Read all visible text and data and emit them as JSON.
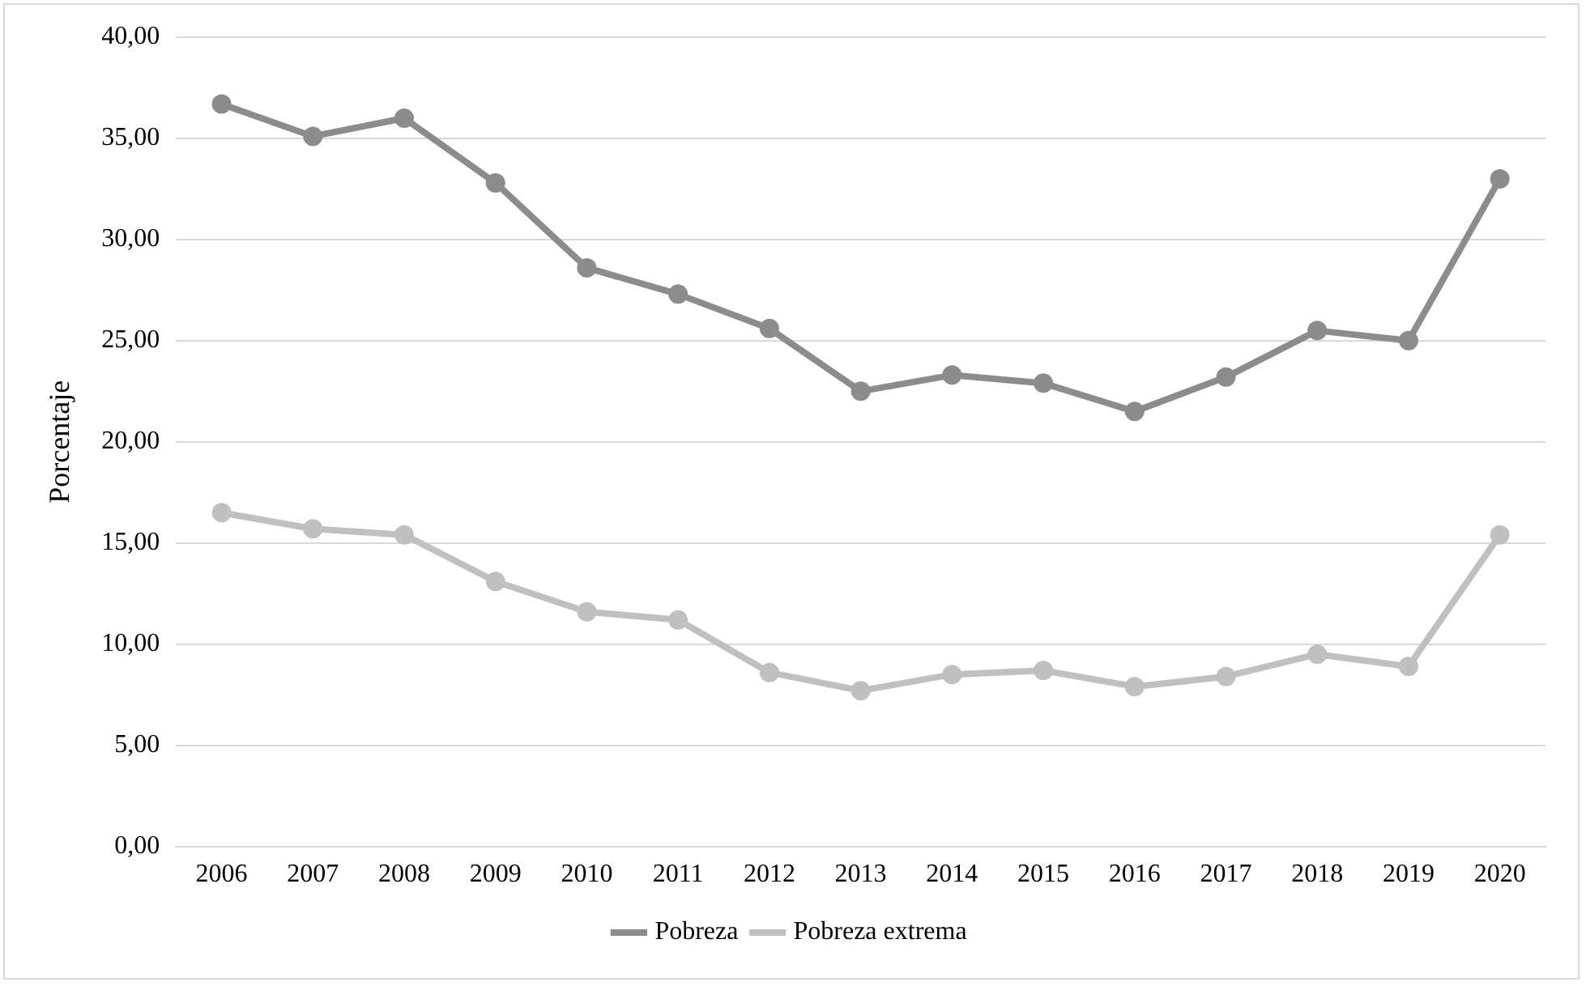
{
  "chart_data": {
    "type": "line",
    "ylabel": "Porcentaje",
    "categories": [
      "2006",
      "2007",
      "2008",
      "2009",
      "2010",
      "2011",
      "2012",
      "2013",
      "2014",
      "2015",
      "2016",
      "2017",
      "2018",
      "2019",
      "2020"
    ],
    "series": [
      {
        "name": "Pobreza",
        "color": "#8c8c8c",
        "values": [
          36.7,
          35.1,
          36.0,
          32.8,
          28.6,
          27.3,
          25.6,
          22.5,
          23.3,
          22.9,
          21.5,
          23.2,
          25.5,
          25.0,
          33.0
        ]
      },
      {
        "name": "Pobreza extrema",
        "color": "#c0c0c0",
        "values": [
          16.5,
          15.7,
          15.4,
          13.1,
          11.6,
          11.2,
          8.6,
          7.7,
          8.5,
          8.7,
          7.9,
          8.4,
          9.5,
          8.9,
          15.4
        ]
      }
    ],
    "ylim": [
      0,
      40
    ],
    "yticks": [
      {
        "value": 0,
        "label": "0,00"
      },
      {
        "value": 5,
        "label": "5,00"
      },
      {
        "value": 10,
        "label": "10,00"
      },
      {
        "value": 15,
        "label": "15,00"
      },
      {
        "value": 20,
        "label": "20,00"
      },
      {
        "value": 25,
        "label": "25,00"
      },
      {
        "value": 30,
        "label": "30,00"
      },
      {
        "value": 35,
        "label": "35,00"
      },
      {
        "value": 40,
        "label": "40,00"
      }
    ],
    "grid": "y",
    "legend": "bottom",
    "marker": "circle",
    "line_style": "solid"
  }
}
